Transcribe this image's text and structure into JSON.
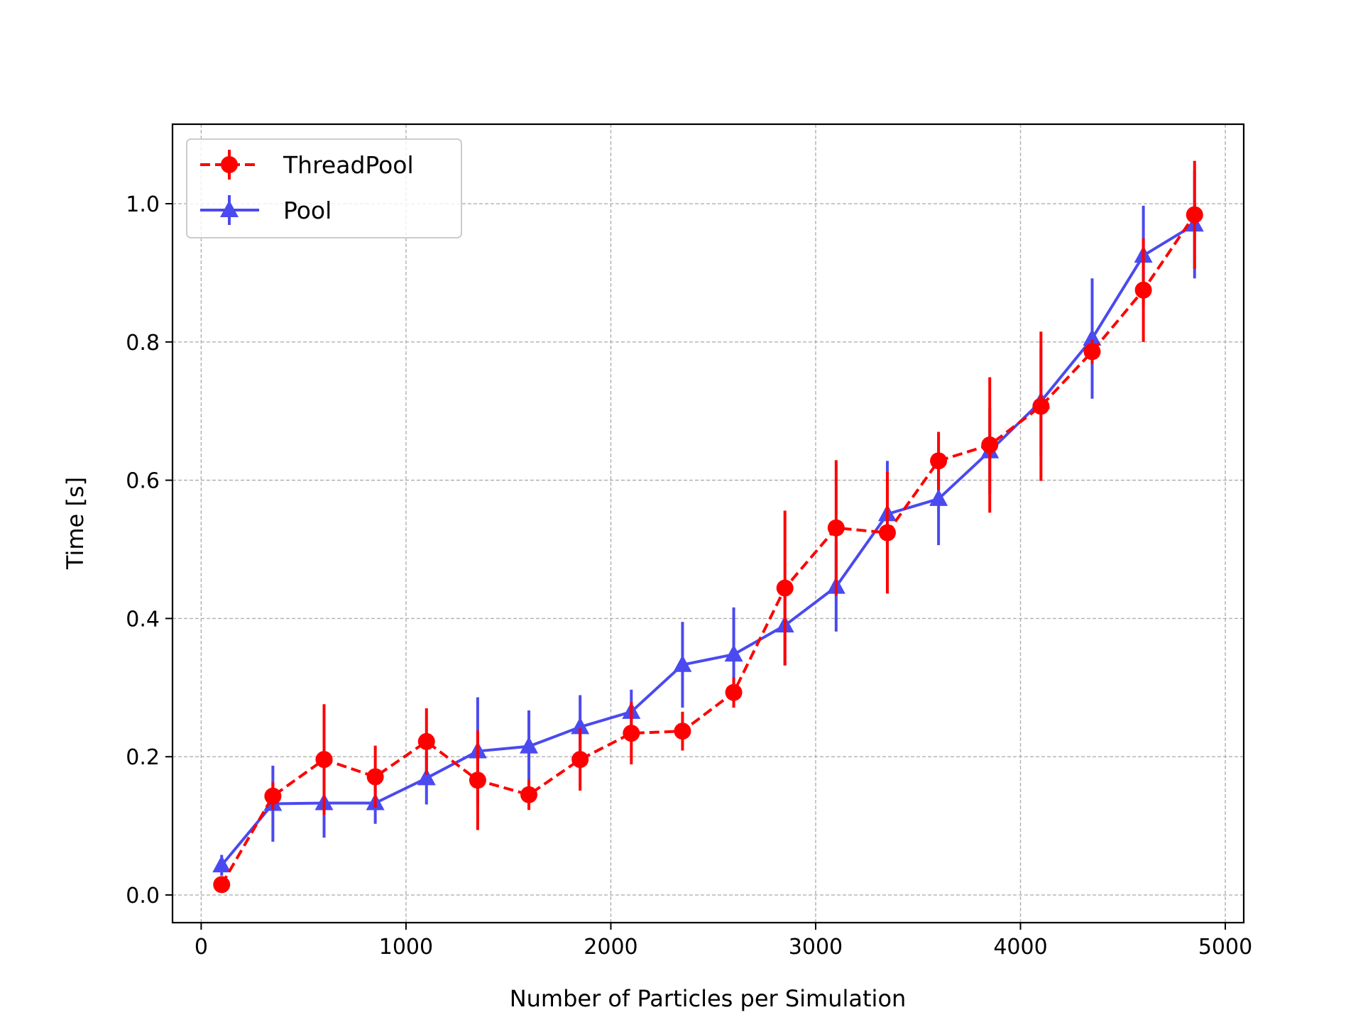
{
  "chart_data": {
    "type": "line",
    "title": "",
    "xlabel": "Number of Particles per Simulation",
    "ylabel": "Time [s]",
    "xlim": [
      -140,
      5090
    ],
    "ylim": [
      -0.04,
      1.115
    ],
    "xticks": [
      0,
      1000,
      2000,
      3000,
      4000,
      5000
    ],
    "yticks": [
      0.0,
      0.2,
      0.4,
      0.6,
      0.8,
      1.0
    ],
    "xtick_labels": [
      "0",
      "1000",
      "2000",
      "3000",
      "4000",
      "5000"
    ],
    "ytick_labels": [
      "0.0",
      "0.2",
      "0.4",
      "0.6",
      "0.8",
      "1.0"
    ],
    "grid": true,
    "legend_position": "top-left",
    "x": [
      100,
      350,
      600,
      850,
      1100,
      1350,
      1600,
      1850,
      2100,
      2350,
      2600,
      2850,
      3100,
      3350,
      3600,
      3850,
      4100,
      4350,
      4600,
      4850
    ],
    "series": [
      {
        "name": "ThreadPool",
        "color": "#ff0000",
        "linestyle": "dashed",
        "marker": "circle",
        "values": [
          0.015,
          0.143,
          0.196,
          0.171,
          0.222,
          0.166,
          0.145,
          0.196,
          0.234,
          0.237,
          0.293,
          0.444,
          0.531,
          0.524,
          0.628,
          0.651,
          0.707,
          0.786,
          0.875,
          0.984
        ],
        "errors": [
          0.01,
          0.02,
          0.08,
          0.045,
          0.048,
          0.072,
          0.022,
          0.045,
          0.045,
          0.028,
          0.022,
          0.112,
          0.098,
          0.088,
          0.042,
          0.098,
          0.108,
          0.018,
          0.075,
          0.078
        ]
      },
      {
        "name": "Pool",
        "color": "#4a4af0",
        "linestyle": "solid",
        "marker": "triangle",
        "values": [
          0.043,
          0.132,
          0.133,
          0.133,
          0.169,
          0.208,
          0.215,
          0.243,
          0.265,
          0.333,
          0.348,
          0.39,
          0.446,
          0.551,
          0.573,
          0.642,
          0.714,
          0.805,
          0.925,
          0.97
        ],
        "errors": [
          0.015,
          0.055,
          0.05,
          0.03,
          0.038,
          0.078,
          0.052,
          0.046,
          0.032,
          0.062,
          0.068,
          0.058,
          0.065,
          0.077,
          0.067,
          0.062,
          0.078,
          0.087,
          0.072,
          0.078
        ]
      }
    ]
  }
}
